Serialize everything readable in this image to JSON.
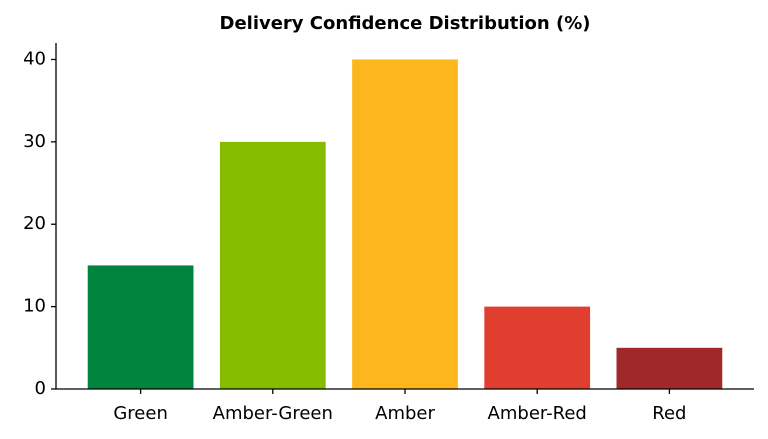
{
  "chart_data": {
    "type": "bar",
    "title": "Delivery Confidence Distribution (%)",
    "categories": [
      "Green",
      "Amber-Green",
      "Amber",
      "Amber-Red",
      "Red"
    ],
    "values": [
      15,
      30,
      40,
      10,
      5
    ],
    "colors": [
      "#00843d",
      "#86bc00",
      "#fdb71d",
      "#e03e2f",
      "#a0282b"
    ],
    "ylim": [
      0,
      42
    ],
    "yticks": [
      0,
      10,
      20,
      30,
      40
    ],
    "grid": false
  }
}
